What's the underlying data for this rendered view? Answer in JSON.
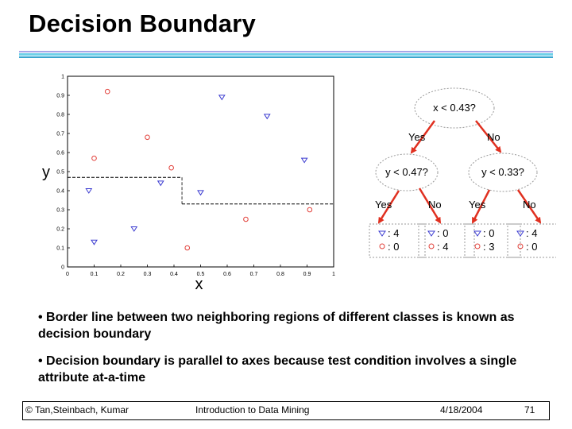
{
  "slide": {
    "title": "Decision Boundary",
    "colors": {
      "bar1": "#a6a6e8",
      "bar2": "#6fd0e8",
      "bar3": "#3aa6d0",
      "class_circle": "#e2413b",
      "class_triangle": "#3a3ad0",
      "arrow": "#e03020"
    }
  },
  "chart_data": {
    "type": "scatter",
    "xlabel": "x",
    "ylabel": "y",
    "xlim": [
      0,
      1
    ],
    "ylim": [
      0,
      1
    ],
    "x_ticks": [
      "0",
      "0.1",
      "0.2",
      "0.3",
      "0.4",
      "0.5",
      "0.6",
      "0.7",
      "0.8",
      "0.9",
      "1"
    ],
    "y_ticks": [
      "0",
      "0.1",
      "0.2",
      "0.3",
      "0.4",
      "0.5",
      "0.6",
      "0.7",
      "0.8",
      "0.9",
      "1"
    ],
    "series": [
      {
        "marker": "circle",
        "color": "#e2413b",
        "points": [
          [
            0.15,
            0.92
          ],
          [
            0.1,
            0.57
          ],
          [
            0.3,
            0.68
          ],
          [
            0.39,
            0.52
          ],
          [
            0.67,
            0.25
          ],
          [
            0.91,
            0.3
          ],
          [
            0.45,
            0.1
          ]
        ]
      },
      {
        "marker": "triangle",
        "color": "#3a3ad0",
        "points": [
          [
            0.58,
            0.89
          ],
          [
            0.75,
            0.79
          ],
          [
            0.89,
            0.56
          ],
          [
            0.35,
            0.44
          ],
          [
            0.08,
            0.4
          ],
          [
            0.5,
            0.39
          ],
          [
            0.25,
            0.2
          ],
          [
            0.1,
            0.13
          ]
        ]
      }
    ],
    "boundaries": [
      {
        "axis": "y",
        "value": 0.47,
        "from": 0,
        "to": 0.43
      },
      {
        "axis": "y",
        "value": 0.33,
        "from": 0.43,
        "to": 1
      }
    ]
  },
  "tree": {
    "root": "x < 0.43?",
    "root_yes": "Yes",
    "root_no": "No",
    "left": "y < 0.47?",
    "right": "y < 0.33?",
    "leaf_yes": "Yes",
    "leaf_no": "No",
    "leaves": [
      {
        "triangle": ": 4",
        "circle": ": 0"
      },
      {
        "triangle": ": 0",
        "circle": ": 4"
      },
      {
        "triangle": ": 0",
        "circle": ": 3"
      },
      {
        "triangle": ": 4",
        "circle": ": 0"
      }
    ]
  },
  "bullets": [
    "• Border line between two neighboring regions of different classes is known as decision boundary",
    "• Decision boundary is parallel to axes because test condition involves a single attribute at-a-time"
  ],
  "footer": {
    "copyright": "© Tan,Steinbach, Kumar",
    "course": "Introduction to Data Mining",
    "date": "4/18/2004",
    "page": "71"
  }
}
